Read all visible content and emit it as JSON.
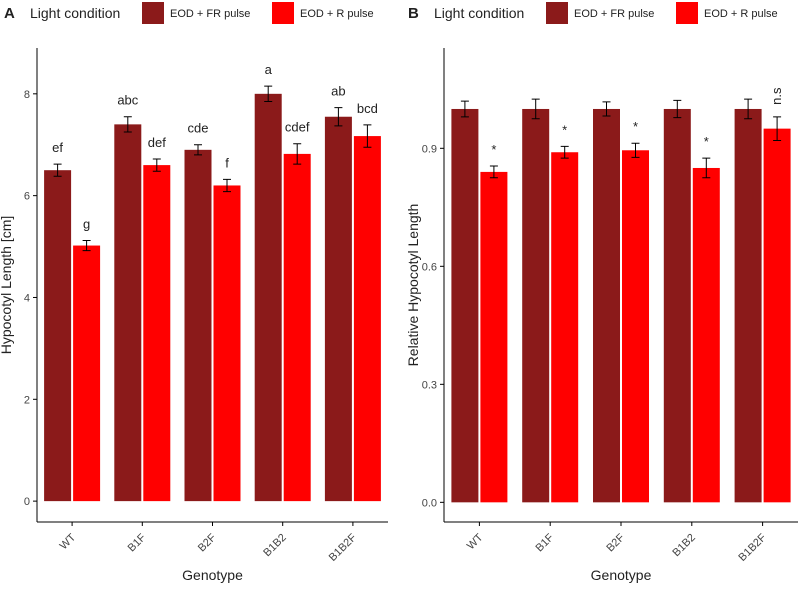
{
  "chart_data": [
    {
      "type": "bar",
      "panel": "A",
      "legend_title": "Light condition",
      "x_label": "Genotype",
      "y_label": "Hypocotyl Length [cm]",
      "categories": [
        "WT",
        "B1F",
        "B2F",
        "B1B2",
        "B1B2F"
      ],
      "series": [
        {
          "name": "EOD + FR pulse",
          "color": "#8b1a1a",
          "values": [
            6.5,
            7.4,
            6.9,
            8.0,
            7.55
          ],
          "errors": [
            0.12,
            0.15,
            0.1,
            0.15,
            0.18
          ],
          "labels": [
            "ef",
            "abc",
            "cde",
            "a",
            "ab"
          ]
        },
        {
          "name": "EOD + R pulse",
          "color": "#ff0000",
          "values": [
            5.02,
            6.6,
            6.2,
            6.82,
            7.17
          ],
          "errors": [
            0.1,
            0.12,
            0.12,
            0.2,
            0.22
          ],
          "labels": [
            "g",
            "def",
            "f",
            "cdef",
            "bcd"
          ]
        }
      ],
      "ylim": [
        -0.41,
        8.9
      ],
      "yticks": [
        0,
        2,
        4,
        6,
        8
      ]
    },
    {
      "type": "bar",
      "panel": "B",
      "legend_title": "Light condition",
      "x_label": "Genotype",
      "y_label": "Relative Hypocotyl Length",
      "categories": [
        "WT",
        "B1F",
        "B2F",
        "B1B2",
        "B1B2F"
      ],
      "series": [
        {
          "name": "EOD + FR pulse",
          "color": "#8b1a1a",
          "values": [
            1.0,
            1.0,
            1.0,
            1.0,
            1.0
          ],
          "errors": [
            0.02,
            0.025,
            0.018,
            0.022,
            0.025
          ],
          "labels": [
            null,
            null,
            null,
            null,
            null
          ]
        },
        {
          "name": "EOD + R pulse",
          "color": "#ff0000",
          "values": [
            0.84,
            0.89,
            0.895,
            0.85,
            0.95
          ],
          "errors": [
            0.015,
            0.015,
            0.018,
            0.025,
            0.03
          ],
          "labels": [
            "*",
            "*",
            "*",
            "*",
            "n.s"
          ]
        }
      ],
      "ylim": [
        -0.05,
        1.155
      ],
      "yticks": [
        {
          "value": 0,
          "label": "0.0"
        },
        0.3,
        0.6,
        0.9
      ]
    }
  ]
}
